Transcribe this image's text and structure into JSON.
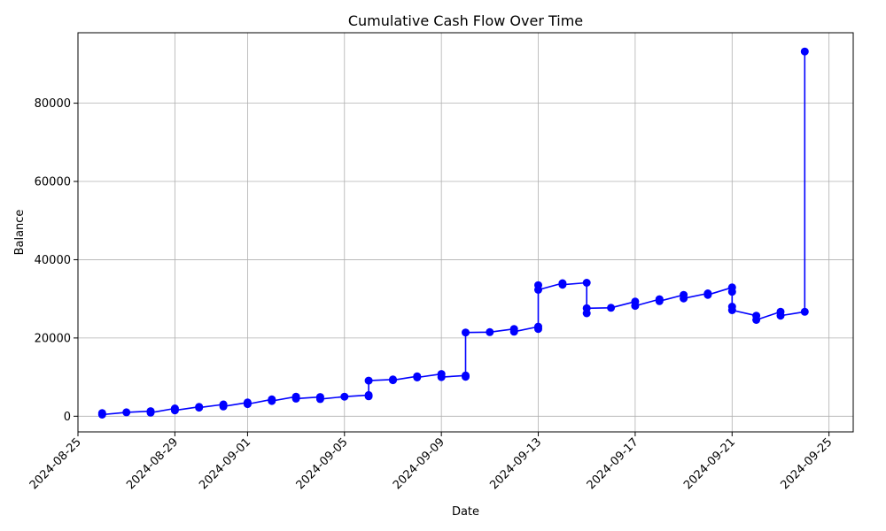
{
  "chart_data": {
    "type": "line",
    "title": "Cumulative Cash Flow Over Time",
    "xlabel": "Date",
    "ylabel": "Balance",
    "xlim": [
      "2024-08-25",
      "2024-09-26"
    ],
    "ylim": [
      -4000,
      98000
    ],
    "x_ticks": [
      "2024-08-25",
      "2024-08-29",
      "2024-09-01",
      "2024-09-05",
      "2024-09-09",
      "2024-09-13",
      "2024-09-17",
      "2024-09-21",
      "2024-09-25"
    ],
    "y_ticks": [
      0,
      20000,
      40000,
      60000,
      80000
    ],
    "grid": true,
    "marker": "circle",
    "line_color": "#0000ff",
    "series": [
      {
        "x": [
          "2024-08-26",
          "2024-08-26",
          "2024-08-27",
          "2024-08-28",
          "2024-08-28",
          "2024-08-29",
          "2024-08-29",
          "2024-08-30",
          "2024-08-30",
          "2024-08-31",
          "2024-08-31",
          "2024-09-01",
          "2024-09-01",
          "2024-09-02",
          "2024-09-02",
          "2024-09-03",
          "2024-09-03",
          "2024-09-04",
          "2024-09-04",
          "2024-09-05",
          "2024-09-06",
          "2024-09-06",
          "2024-09-06",
          "2024-09-07",
          "2024-09-07",
          "2024-09-08",
          "2024-09-08",
          "2024-09-09",
          "2024-09-09",
          "2024-09-10",
          "2024-09-10",
          "2024-09-10",
          "2024-09-11",
          "2024-09-12",
          "2024-09-12",
          "2024-09-13",
          "2024-09-13",
          "2024-09-13",
          "2024-09-13",
          "2024-09-14",
          "2024-09-14",
          "2024-09-15",
          "2024-09-15",
          "2024-09-15",
          "2024-09-16",
          "2024-09-17",
          "2024-09-17",
          "2024-09-18",
          "2024-09-18",
          "2024-09-19",
          "2024-09-19",
          "2024-09-20",
          "2024-09-20",
          "2024-09-21",
          "2024-09-21",
          "2024-09-21",
          "2024-09-21",
          "2024-09-22",
          "2024-09-22",
          "2024-09-23",
          "2024-09-23",
          "2024-09-24",
          "2024-09-24"
        ],
        "y": [
          800,
          400,
          1000,
          1300,
          900,
          2000,
          1500,
          2400,
          2200,
          3000,
          2500,
          3500,
          3100,
          4300,
          3900,
          5000,
          4500,
          4900,
          4400,
          5000,
          5400,
          5100,
          9100,
          9400,
          9200,
          10200,
          9900,
          10800,
          10000,
          10400,
          10100,
          21400,
          21500,
          22300,
          21600,
          22900,
          22300,
          33500,
          32300,
          34000,
          33600,
          34100,
          26300,
          27600,
          27700,
          29300,
          28200,
          29900,
          29400,
          31000,
          30100,
          31400,
          31000,
          32900,
          31800,
          28000,
          27100,
          25700,
          24600,
          26700,
          25700,
          26700,
          93200
        ]
      }
    ]
  }
}
